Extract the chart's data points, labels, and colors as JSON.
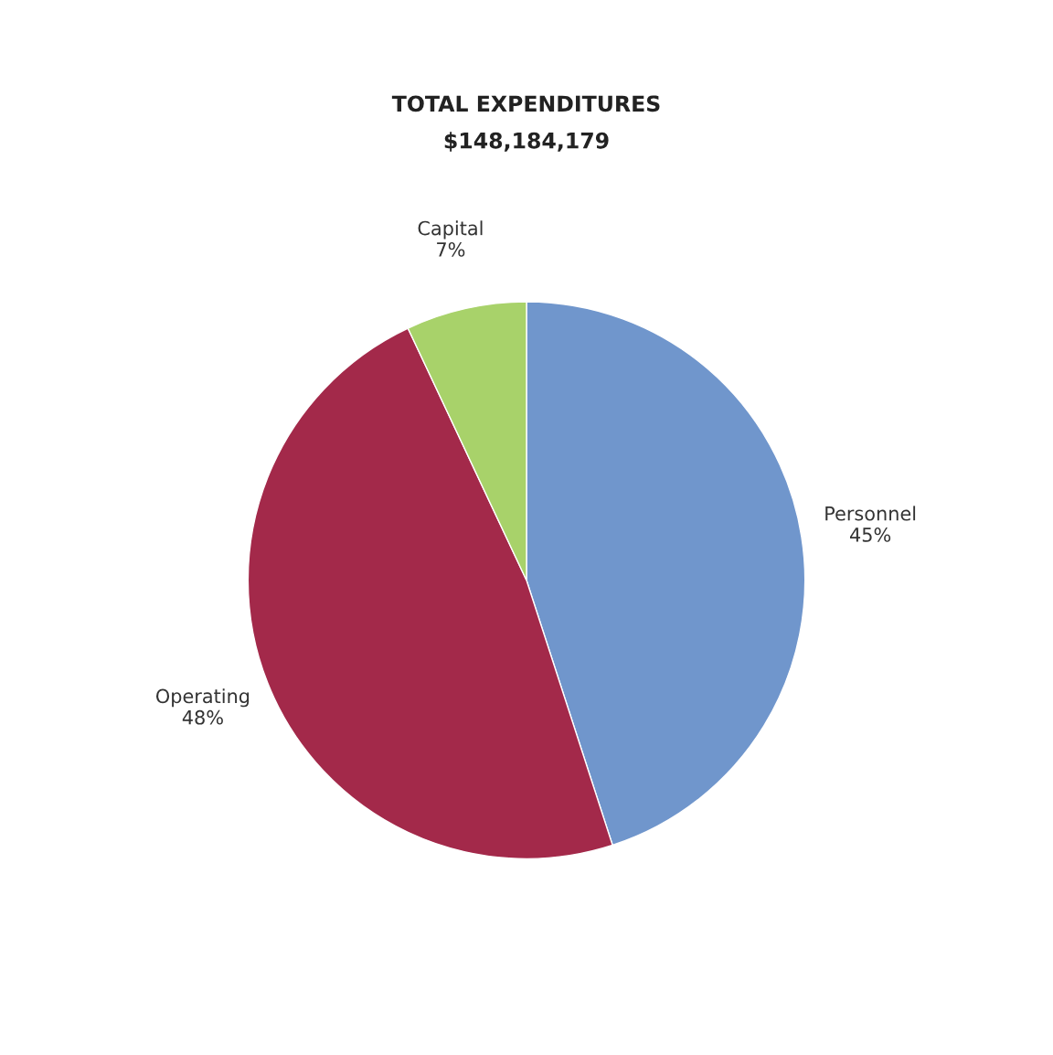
{
  "chart_data": {
    "type": "pie",
    "title": "TOTAL EXPENDITURES",
    "subtitle": "$148,184,179",
    "categories": [
      "Personnel",
      "Operating",
      "Capital"
    ],
    "values": [
      45,
      48,
      7
    ],
    "value_labels": [
      "45%",
      "48%",
      "7%"
    ],
    "colors": [
      "#7096cc",
      "#a3294a",
      "#a8d26a"
    ]
  }
}
